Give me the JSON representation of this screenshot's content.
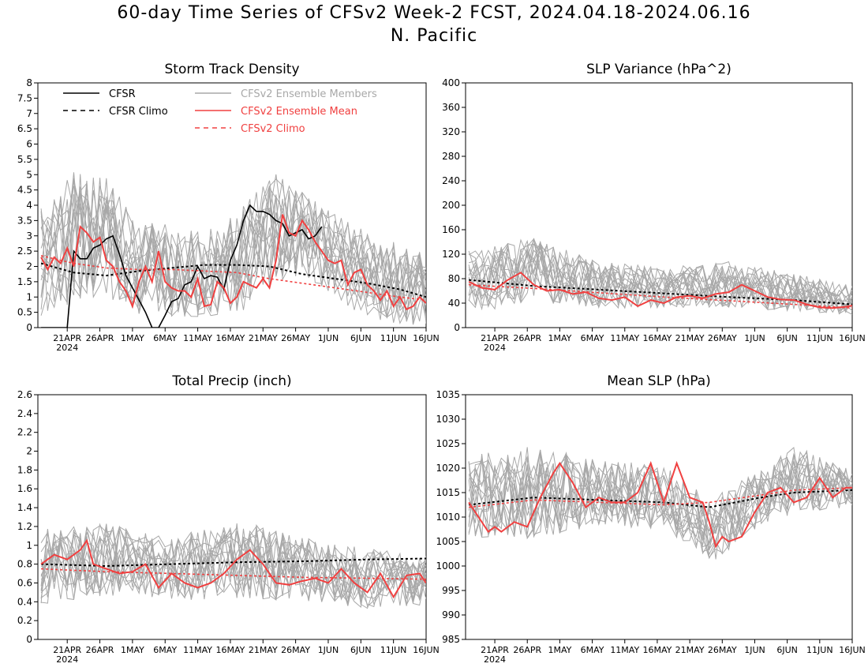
{
  "title_line1": "60-day Time Series of CFSv2 Week-2 FCST, 2024.04.18-2024.06.16",
  "title_line2": "N. Pacific",
  "x_ticks": [
    "21APR",
    "26APR",
    "1MAY",
    "6MAY",
    "11MAY",
    "16MAY",
    "21MAY",
    "26MAY",
    "1JUN",
    "6JUN",
    "11JUN",
    "16JUN"
  ],
  "x_year_label": "2024",
  "legend": {
    "cfsr": "CFSR",
    "cfsr_climo": "CFSR Climo",
    "members": "CFSv2 Ensemble Members",
    "ens_mean": "CFSv2 Ensemble Mean",
    "cfsv2_climo": "CFSv2 Climo"
  },
  "colors": {
    "cfsr": "#000000",
    "members": "#a8a8a8",
    "ens_mean": "#f04040",
    "cfsv2_climo": "#f04040"
  },
  "chart_data": [
    {
      "type": "line",
      "title": "Storm Track Density",
      "ylim": [
        0,
        8
      ],
      "yticks": [
        "0",
        "0.5",
        "1",
        "1.5",
        "2",
        "2.5",
        "3",
        "3.5",
        "4",
        "4.5",
        "5",
        "5.5",
        "6",
        "6.5",
        "7",
        "7.5",
        "8"
      ],
      "legend_placement": "top-left",
      "series": [
        {
          "name": "CFSR",
          "x": [
            0,
            1,
            2,
            3,
            4,
            5,
            6,
            7,
            8,
            9,
            10,
            11,
            12,
            13,
            14,
            15,
            16,
            17,
            18,
            19,
            20,
            21,
            22,
            23,
            24,
            25,
            26,
            27,
            28,
            29,
            30,
            31,
            32,
            33,
            34,
            35,
            36,
            37,
            38,
            39,
            40,
            41,
            42,
            43
          ],
          "values": [
            0,
            0,
            0,
            0,
            0,
            2.5,
            2.25,
            2.25,
            2.6,
            2.7,
            2.9,
            3.0,
            2.4,
            1.7,
            1.3,
            0.9,
            0.5,
            0,
            0,
            0.4,
            0.85,
            0.95,
            1.4,
            1.5,
            2.0,
            1.6,
            1.7,
            1.65,
            1.25,
            2.2,
            2.7,
            3.5,
            4.0,
            3.8,
            3.8,
            3.7,
            3.5,
            3.4,
            3.0,
            3.1,
            3.2,
            2.9,
            3.0,
            3.3
          ]
        },
        {
          "name": "CFSR Climo",
          "x": [
            0,
            5,
            10,
            15,
            20,
            25,
            30,
            35,
            40,
            45,
            50,
            55,
            59
          ],
          "values": [
            2.1,
            1.8,
            1.7,
            1.85,
            1.95,
            2.05,
            2.05,
            2.0,
            1.75,
            1.6,
            1.45,
            1.25,
            1.0
          ]
        },
        {
          "name": "CFSv2 Ensemble Mean",
          "x": [
            0,
            1,
            2,
            3,
            4,
            5,
            6,
            7,
            8,
            9,
            10,
            11,
            12,
            13,
            14,
            15,
            16,
            17,
            18,
            19,
            20,
            21,
            22,
            23,
            24,
            25,
            26,
            27,
            28,
            29,
            30,
            31,
            32,
            33,
            34,
            35,
            36,
            37,
            38,
            39,
            40,
            41,
            42,
            43,
            44,
            45,
            46,
            47,
            48,
            49,
            50,
            51,
            52,
            53,
            54,
            55,
            56,
            57,
            58,
            59
          ],
          "values": [
            2.3,
            1.9,
            2.3,
            2.1,
            2.6,
            2.0,
            3.3,
            3.1,
            2.8,
            2.95,
            2.2,
            2.0,
            1.5,
            1.2,
            0.7,
            1.5,
            2.0,
            1.5,
            2.5,
            1.5,
            1.3,
            1.2,
            1.2,
            1.0,
            1.6,
            0.7,
            0.75,
            1.5,
            1.3,
            0.8,
            1.0,
            1.5,
            1.4,
            1.3,
            1.6,
            1.3,
            2.2,
            3.7,
            3.1,
            3.0,
            3.5,
            3.2,
            2.8,
            2.5,
            2.2,
            2.1,
            2.2,
            1.4,
            1.8,
            1.9,
            1.4,
            1.2,
            0.9,
            1.2,
            0.7,
            1.0,
            0.6,
            0.7,
            1.0,
            0.8
          ]
        },
        {
          "name": "CFSv2 Climo",
          "x": [
            0,
            5,
            10,
            15,
            20,
            25,
            30,
            35,
            40,
            45,
            50,
            55,
            59
          ],
          "values": [
            2.35,
            2.1,
            1.95,
            1.9,
            1.9,
            1.85,
            1.8,
            1.6,
            1.45,
            1.3,
            1.15,
            1.0,
            0.9
          ]
        }
      ],
      "members_band": {
        "x": [
          0,
          5,
          10,
          15,
          20,
          25,
          30,
          35,
          40,
          45,
          50,
          55,
          59
        ],
        "low": [
          0.3,
          0.7,
          0.9,
          0.3,
          0.2,
          0.2,
          0.3,
          1.2,
          1.5,
          0.8,
          0.3,
          0.0,
          0.0
        ],
        "high": [
          4.0,
          5.3,
          5.0,
          3.5,
          3.5,
          3.2,
          3.8,
          5.3,
          4.5,
          3.8,
          3.2,
          2.8,
          2.5
        ]
      }
    },
    {
      "type": "line",
      "title": "SLP Variance (hPa^2)",
      "ylim": [
        0,
        400
      ],
      "yticks": [
        "0",
        "40",
        "80",
        "120",
        "160",
        "200",
        "240",
        "280",
        "320",
        "360",
        "400"
      ],
      "series": [
        {
          "name": "CFSR Climo",
          "x": [
            0,
            10,
            20,
            30,
            40,
            50,
            59
          ],
          "values": [
            78,
            68,
            62,
            56,
            50,
            45,
            38
          ]
        },
        {
          "name": "CFSv2 Ensemble Mean",
          "x": [
            0,
            2,
            4,
            6,
            8,
            10,
            12,
            14,
            16,
            18,
            20,
            22,
            24,
            26,
            28,
            30,
            32,
            34,
            36,
            38,
            40,
            42,
            44,
            46,
            48,
            50,
            52,
            54,
            56,
            58,
            59
          ],
          "values": [
            75,
            65,
            62,
            78,
            90,
            70,
            60,
            62,
            55,
            58,
            48,
            45,
            50,
            35,
            45,
            40,
            50,
            52,
            48,
            55,
            58,
            70,
            60,
            50,
            46,
            45,
            38,
            33,
            32,
            34,
            36
          ]
        },
        {
          "name": "CFSv2 Climo",
          "x": [
            0,
            10,
            20,
            30,
            40,
            50,
            59
          ],
          "values": [
            70,
            64,
            57,
            50,
            44,
            38,
            32
          ]
        }
      ],
      "members_band": {
        "x": [
          0,
          10,
          20,
          30,
          40,
          50,
          59
        ],
        "low": [
          20,
          40,
          30,
          30,
          30,
          25,
          20
        ],
        "high": [
          130,
          150,
          110,
          100,
          110,
          90,
          70
        ]
      }
    },
    {
      "type": "line",
      "title": "Total Precip (inch)",
      "ylim": [
        0,
        2.6
      ],
      "yticks": [
        "0",
        "0.2",
        "0.4",
        "0.6",
        "0.8",
        "1",
        "1.2",
        "1.4",
        "1.6",
        "1.8",
        "2",
        "2.2",
        "2.4",
        "2.6"
      ],
      "series": [
        {
          "name": "CFSR Climo",
          "x": [
            0,
            10,
            20,
            30,
            40,
            50,
            59
          ],
          "values": [
            0.8,
            0.78,
            0.8,
            0.82,
            0.83,
            0.85,
            0.86
          ]
        },
        {
          "name": "CFSv2 Ensemble Mean",
          "x": [
            0,
            2,
            4,
            6,
            7,
            8,
            10,
            12,
            14,
            16,
            18,
            20,
            22,
            24,
            26,
            28,
            30,
            32,
            34,
            36,
            38,
            40,
            42,
            44,
            46,
            48,
            50,
            52,
            54,
            56,
            58,
            59
          ],
          "values": [
            0.8,
            0.9,
            0.85,
            0.95,
            1.05,
            0.8,
            0.75,
            0.7,
            0.72,
            0.8,
            0.55,
            0.7,
            0.6,
            0.55,
            0.6,
            0.7,
            0.85,
            0.95,
            0.8,
            0.6,
            0.58,
            0.62,
            0.65,
            0.6,
            0.75,
            0.6,
            0.5,
            0.7,
            0.45,
            0.68,
            0.7,
            0.6
          ]
        },
        {
          "name": "CFSv2 Climo",
          "x": [
            0,
            10,
            20,
            30,
            40,
            50,
            59
          ],
          "values": [
            0.75,
            0.72,
            0.7,
            0.68,
            0.66,
            0.65,
            0.64
          ]
        }
      ],
      "members_band": {
        "x": [
          0,
          10,
          20,
          30,
          40,
          50,
          59
        ],
        "low": [
          0.35,
          0.45,
          0.4,
          0.4,
          0.4,
          0.3,
          0.35
        ],
        "high": [
          1.2,
          1.25,
          1.1,
          1.3,
          1.1,
          1.0,
          0.9
        ]
      }
    },
    {
      "type": "line",
      "title": "Mean SLP (hPa)",
      "ylim": [
        985,
        1035
      ],
      "yticks": [
        "985",
        "990",
        "995",
        "1000",
        "1005",
        "1010",
        "1015",
        "1020",
        "1025",
        "1030",
        "1035"
      ],
      "series": [
        {
          "name": "CFSR Climo",
          "x": [
            0,
            10,
            20,
            30,
            37,
            45,
            50,
            59
          ],
          "values": [
            1012.5,
            1014,
            1013.5,
            1013,
            1012,
            1014,
            1015,
            1015.5
          ]
        },
        {
          "name": "CFSv2 Ensemble Mean",
          "x": [
            0,
            3,
            4,
            5,
            7,
            9,
            11,
            13,
            14,
            16,
            18,
            20,
            22,
            24,
            26,
            28,
            30,
            32,
            34,
            36,
            37,
            38,
            39,
            40,
            42,
            44,
            46,
            48,
            50,
            52,
            54,
            55,
            56,
            57,
            58,
            59
          ],
          "values": [
            1013,
            1007,
            1008,
            1007,
            1009,
            1008,
            1014,
            1019,
            1021,
            1017,
            1012,
            1014,
            1013,
            1013,
            1015,
            1021,
            1013,
            1021,
            1014,
            1013,
            1009,
            1004,
            1006,
            1005,
            1006,
            1011,
            1015,
            1016,
            1013,
            1014,
            1018,
            1016,
            1014,
            1015,
            1016,
            1016
          ]
        },
        {
          "name": "CFSv2 Climo",
          "x": [
            0,
            10,
            20,
            30,
            37,
            45,
            50,
            59
          ],
          "values": [
            1012,
            1013.5,
            1013,
            1012.5,
            1013,
            1014.5,
            1015.5,
            1016
          ]
        }
      ],
      "members_band": {
        "x": [
          0,
          10,
          20,
          30,
          37,
          45,
          50,
          59
        ],
        "low": [
          1005,
          1005,
          1008,
          1007,
          1000,
          1008,
          1010,
          1012
        ],
        "high": [
          1023,
          1025,
          1022,
          1021,
          1014,
          1020,
          1025,
          1020
        ]
      }
    }
  ]
}
